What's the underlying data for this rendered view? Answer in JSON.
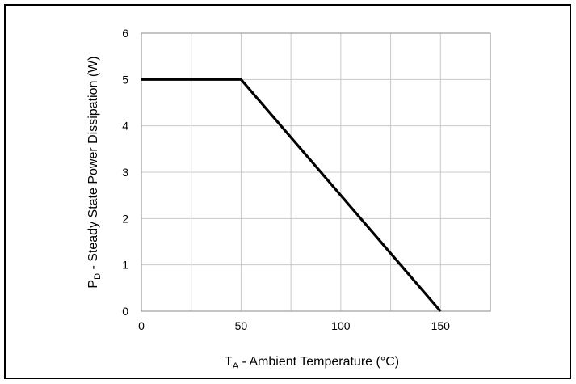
{
  "chart_data": {
    "type": "line",
    "xlabel_main": "T",
    "xlabel_sub": "A",
    "xlabel_rest": " - Ambient Temperature (°C)",
    "ylabel_main": "P",
    "ylabel_sub": "D",
    "ylabel_rest": " - Steady State Power Dissipation (W)",
    "xlim": [
      0,
      175
    ],
    "ylim": [
      0,
      6
    ],
    "x_ticks": [
      0,
      50,
      100,
      150
    ],
    "y_ticks": [
      0,
      1,
      2,
      3,
      4,
      5,
      6
    ],
    "x_minor_grid": [
      25,
      75,
      125,
      175
    ],
    "grid": true,
    "series": [
      {
        "x": [
          0,
          50,
          150
        ],
        "y": [
          5,
          5,
          0
        ]
      }
    ]
  }
}
